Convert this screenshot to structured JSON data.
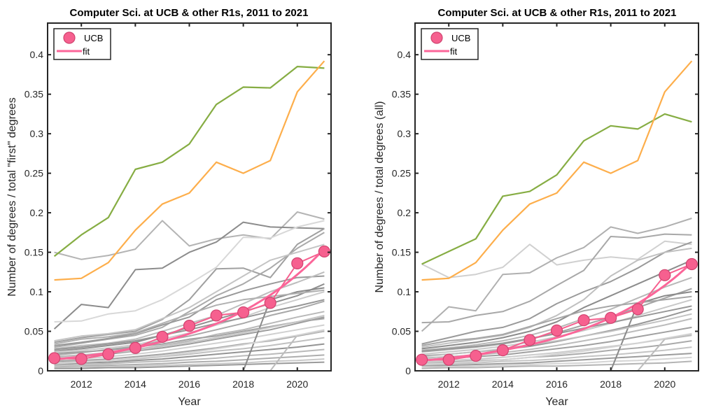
{
  "chart_data": [
    {
      "type": "line",
      "title": "Computer Sci. at UCB & other R1s, 2011 to 2021",
      "xlabel": "Year",
      "ylabel": "Number of degrees / total \"first\" degrees",
      "xlim": [
        2010.75,
        2021.25
      ],
      "ylim": [
        0,
        0.44
      ],
      "xticks": [
        2012,
        2014,
        2016,
        2018,
        2020
      ],
      "xtick_labels": [
        "2012",
        "2014",
        "2016",
        "2018",
        "2020"
      ],
      "yticks": [
        0,
        0.05,
        0.1,
        0.15,
        0.2,
        0.25,
        0.3,
        0.35,
        0.4
      ],
      "ytick_labels": [
        "0",
        "0.05",
        "0.1",
        "0.15",
        "0.2",
        "0.25",
        "0.3",
        "0.35",
        "0.4"
      ],
      "grid": false,
      "legend": {
        "placement": "top-left",
        "entries": [
          "UCB",
          "fit"
        ]
      },
      "x": [
        2011,
        2012,
        2013,
        2014,
        2015,
        2016,
        2017,
        2018,
        2019,
        2020,
        2021
      ],
      "highlight_series": [
        {
          "name": "green-institution",
          "color": "#86ad43",
          "values": [
            0.145,
            0.172,
            0.194,
            0.255,
            0.264,
            0.287,
            0.337,
            0.359,
            0.358,
            0.385,
            0.383
          ]
        },
        {
          "name": "orange-institution",
          "color": "#fdae4b",
          "values": [
            0.115,
            0.117,
            0.137,
            0.178,
            0.211,
            0.225,
            0.264,
            0.25,
            0.266,
            0.353,
            0.392
          ]
        }
      ],
      "ucb": {
        "name": "UCB",
        "color": "#f6608f",
        "values": [
          0.016,
          0.015,
          0.021,
          0.029,
          0.043,
          0.057,
          0.07,
          0.074,
          0.086,
          0.136,
          0.151
        ]
      },
      "fit": {
        "name": "fit",
        "color": "#fb6699",
        "model": "exponential",
        "a": 0.0143,
        "b": 0.238
      },
      "gray_series": [
        {
          "color": "#b4b4b4",
          "values": [
            0.15,
            0.141,
            0.146,
            0.154,
            0.19,
            0.158,
            0.167,
            0.172,
            0.167,
            0.201,
            0.192
          ]
        },
        {
          "color": "#8c8c8c",
          "values": [
            0.053,
            0.084,
            0.08,
            0.128,
            0.13,
            0.15,
            0.163,
            0.188,
            0.182,
            0.181,
            0.18
          ]
        },
        {
          "color": "#d8d8d8",
          "values": [
            0.062,
            0.063,
            0.072,
            0.076,
            0.09,
            0.11,
            0.131,
            0.169,
            0.168,
            0.182,
            0.19
          ]
        },
        {
          "color": "#a0a0a0",
          "values": [
            0.036,
            0.042,
            0.046,
            0.05,
            0.065,
            0.09,
            0.129,
            0.13,
            0.118,
            0.16,
            0.18
          ]
        },
        {
          "color": "#aaaaaa",
          "values": [
            0.03,
            0.035,
            0.04,
            0.045,
            0.055,
            0.075,
            0.095,
            0.11,
            0.13,
            0.155,
            0.175
          ]
        },
        {
          "color": "#c4c4c4",
          "values": [
            0.038,
            0.044,
            0.047,
            0.052,
            0.066,
            0.08,
            0.1,
            0.12,
            0.14,
            0.15,
            0.16
          ]
        },
        {
          "color": "#999999",
          "values": [
            0.032,
            0.036,
            0.041,
            0.047,
            0.058,
            0.068,
            0.09,
            0.101,
            0.11,
            0.118,
            0.12
          ]
        },
        {
          "color": "#bdbdbd",
          "values": [
            0.028,
            0.032,
            0.035,
            0.04,
            0.05,
            0.06,
            0.07,
            0.085,
            0.1,
            0.112,
            0.125
          ]
        },
        {
          "color": "#8f8f8f",
          "values": [
            0.025,
            0.028,
            0.032,
            0.036,
            0.045,
            0.055,
            0.065,
            0.075,
            0.085,
            0.095,
            0.11
          ]
        },
        {
          "color": "#cccccc",
          "values": [
            0.024,
            0.026,
            0.029,
            0.033,
            0.04,
            0.048,
            0.058,
            0.068,
            0.08,
            0.09,
            0.1
          ]
        },
        {
          "color": "#a8a8a8",
          "values": [
            0.02,
            0.023,
            0.027,
            0.031,
            0.038,
            0.044,
            0.052,
            0.06,
            0.07,
            0.078,
            0.088
          ]
        },
        {
          "color": "#b8b8b8",
          "values": [
            0.018,
            0.02,
            0.023,
            0.027,
            0.032,
            0.038,
            0.046,
            0.052,
            0.06,
            0.068,
            0.075
          ]
        },
        {
          "color": "#9c9c9c",
          "values": [
            0.015,
            0.018,
            0.021,
            0.025,
            0.029,
            0.034,
            0.04,
            0.046,
            0.052,
            0.06,
            0.068
          ]
        },
        {
          "color": "#d0d0d0",
          "values": [
            0.013,
            0.015,
            0.018,
            0.021,
            0.025,
            0.03,
            0.035,
            0.04,
            0.046,
            0.052,
            0.058
          ]
        },
        {
          "color": "#a4a4a4",
          "values": [
            0.012,
            0.013,
            0.015,
            0.018,
            0.021,
            0.025,
            0.029,
            0.034,
            0.038,
            0.044,
            0.05
          ]
        },
        {
          "color": "#c0c0c0",
          "values": [
            0.01,
            0.012,
            0.013,
            0.015,
            0.018,
            0.021,
            0.025,
            0.028,
            0.032,
            0.037,
            0.042
          ]
        },
        {
          "color": "#949494",
          "values": [
            0.008,
            0.01,
            0.011,
            0.013,
            0.015,
            0.018,
            0.021,
            0.024,
            0.027,
            0.03,
            0.034
          ]
        },
        {
          "color": "#bababa",
          "values": [
            0.007,
            0.008,
            0.009,
            0.011,
            0.012,
            0.014,
            0.016,
            0.019,
            0.021,
            0.024,
            0.027
          ]
        },
        {
          "color": "#aeaeae",
          "values": [
            0.005,
            0.006,
            0.007,
            0.008,
            0.009,
            0.011,
            0.012,
            0.014,
            0.016,
            0.018,
            0.02
          ]
        },
        {
          "color": "#c8c8c8",
          "values": [
            0.004,
            0.005,
            0.005,
            0.006,
            0.007,
            0.008,
            0.009,
            0.01,
            0.012,
            0.013,
            0.015
          ]
        },
        {
          "color": "#9a9a9a",
          "values": [
            0.003,
            0.003,
            0.004,
            0.004,
            0.005,
            0.006,
            0.007,
            0.008,
            0.009,
            0.01,
            0.011
          ]
        },
        {
          "color": "#8a8a8a",
          "values": [
            null,
            null,
            null,
            null,
            null,
            null,
            null,
            0.0,
            0.09,
            0.1,
            0.105
          ]
        },
        {
          "color": "#bcbcbc",
          "values": [
            null,
            null,
            null,
            null,
            null,
            null,
            null,
            null,
            0.0,
            0.045,
            0.05
          ]
        },
        {
          "color": "#b0b0b0",
          "values": [
            0.034,
            0.04,
            0.043,
            0.048,
            0.06,
            0.072,
            0.083,
            0.09,
            0.094,
            0.098,
            0.102
          ]
        },
        {
          "color": "#a2a2a2",
          "values": [
            0.022,
            0.024,
            0.026,
            0.03,
            0.034,
            0.04,
            0.044,
            0.05,
            0.056,
            0.062,
            0.066
          ]
        },
        {
          "color": "#c6c6c6",
          "values": [
            0.016,
            0.019,
            0.022,
            0.026,
            0.031,
            0.036,
            0.042,
            0.048,
            0.055,
            0.062,
            0.07
          ]
        },
        {
          "color": "#969696",
          "values": [
            0.027,
            0.03,
            0.034,
            0.038,
            0.045,
            0.052,
            0.06,
            0.067,
            0.075,
            0.082,
            0.09
          ]
        },
        {
          "color": "#d4d4d4",
          "values": [
            0.009,
            0.011,
            0.013,
            0.016,
            0.019,
            0.023,
            0.028,
            0.033,
            0.039,
            0.045,
            0.052
          ]
        }
      ]
    },
    {
      "type": "line",
      "title": "Computer Sci. at UCB & other R1s, 2011 to 2021",
      "xlabel": "Year",
      "ylabel": "Number of degrees / total degrees (all)",
      "xlim": [
        2010.75,
        2021.25
      ],
      "ylim": [
        0,
        0.44
      ],
      "xticks": [
        2012,
        2014,
        2016,
        2018,
        2020
      ],
      "xtick_labels": [
        "2012",
        "2014",
        "2016",
        "2018",
        "2020"
      ],
      "yticks": [
        0,
        0.05,
        0.1,
        0.15,
        0.2,
        0.25,
        0.3,
        0.35,
        0.4
      ],
      "ytick_labels": [
        "0",
        "0.05",
        "0.1",
        "0.15",
        "0.2",
        "0.25",
        "0.3",
        "0.35",
        "0.4"
      ],
      "grid": false,
      "legend": {
        "placement": "top-left",
        "entries": [
          "UCB",
          "fit"
        ]
      },
      "x": [
        2011,
        2012,
        2013,
        2014,
        2015,
        2016,
        2017,
        2018,
        2019,
        2020,
        2021
      ],
      "highlight_series": [
        {
          "name": "green-institution",
          "color": "#86ad43",
          "values": [
            0.135,
            0.151,
            0.167,
            0.221,
            0.227,
            0.248,
            0.291,
            0.31,
            0.306,
            0.325,
            0.315
          ]
        },
        {
          "name": "orange-institution",
          "color": "#fdae4b",
          "values": [
            0.115,
            0.117,
            0.137,
            0.178,
            0.211,
            0.225,
            0.264,
            0.25,
            0.266,
            0.353,
            0.392
          ]
        }
      ],
      "ucb": {
        "name": "UCB",
        "color": "#f6608f",
        "values": [
          0.014,
          0.014,
          0.019,
          0.026,
          0.039,
          0.051,
          0.064,
          0.067,
          0.078,
          0.121,
          0.135
        ]
      },
      "fit": {
        "name": "fit",
        "color": "#fb6699",
        "model": "exponential",
        "a": 0.0128,
        "b": 0.237
      },
      "gray_series": [
        {
          "color": "#d0d0d0",
          "values": [
            0.135,
            0.118,
            0.122,
            0.131,
            0.16,
            0.134,
            0.14,
            0.144,
            0.141,
            0.164,
            0.16
          ]
        },
        {
          "color": "#b0b0b0",
          "values": [
            0.05,
            0.081,
            0.076,
            0.122,
            0.124,
            0.143,
            0.156,
            0.182,
            0.174,
            0.182,
            0.193
          ]
        },
        {
          "color": "#a8a8a8",
          "values": [
            0.061,
            0.062,
            0.07,
            0.075,
            0.088,
            0.108,
            0.127,
            0.17,
            0.168,
            0.173,
            0.172
          ]
        },
        {
          "color": "#9a9a9a",
          "values": [
            0.034,
            0.042,
            0.05,
            0.055,
            0.066,
            0.085,
            0.1,
            0.113,
            0.13,
            0.15,
            0.163
          ]
        },
        {
          "color": "#c0c0c0",
          "values": [
            0.03,
            0.035,
            0.04,
            0.045,
            0.055,
            0.07,
            0.09,
            0.12,
            0.14,
            0.15,
            0.155
          ]
        },
        {
          "color": "#8c8c8c",
          "values": [
            0.028,
            0.032,
            0.036,
            0.042,
            0.05,
            0.062,
            0.08,
            0.095,
            0.11,
            0.125,
            0.14
          ]
        },
        {
          "color": "#b8b8b8",
          "values": [
            0.026,
            0.029,
            0.033,
            0.038,
            0.045,
            0.054,
            0.066,
            0.078,
            0.092,
            0.106,
            0.118
          ]
        },
        {
          "color": "#a4a4a4",
          "values": [
            0.024,
            0.027,
            0.03,
            0.034,
            0.04,
            0.048,
            0.058,
            0.068,
            0.08,
            0.092,
            0.104
          ]
        },
        {
          "color": "#c8c8c8",
          "values": [
            0.021,
            0.024,
            0.027,
            0.031,
            0.036,
            0.043,
            0.051,
            0.06,
            0.07,
            0.08,
            0.09
          ]
        },
        {
          "color": "#969696",
          "values": [
            0.019,
            0.021,
            0.024,
            0.027,
            0.031,
            0.037,
            0.044,
            0.051,
            0.059,
            0.068,
            0.078
          ]
        },
        {
          "color": "#bcbcbc",
          "values": [
            0.016,
            0.018,
            0.02,
            0.023,
            0.027,
            0.032,
            0.038,
            0.044,
            0.051,
            0.058,
            0.066
          ]
        },
        {
          "color": "#a0a0a0",
          "values": [
            0.014,
            0.016,
            0.018,
            0.02,
            0.024,
            0.028,
            0.032,
            0.037,
            0.043,
            0.049,
            0.055
          ]
        },
        {
          "color": "#cccccc",
          "values": [
            0.012,
            0.013,
            0.015,
            0.017,
            0.02,
            0.023,
            0.027,
            0.031,
            0.035,
            0.04,
            0.046
          ]
        },
        {
          "color": "#aaaaaa",
          "values": [
            0.01,
            0.011,
            0.013,
            0.014,
            0.017,
            0.019,
            0.022,
            0.026,
            0.029,
            0.033,
            0.038
          ]
        },
        {
          "color": "#c4c4c4",
          "values": [
            0.008,
            0.009,
            0.01,
            0.012,
            0.013,
            0.015,
            0.018,
            0.02,
            0.023,
            0.026,
            0.03
          ]
        },
        {
          "color": "#9c9c9c",
          "values": [
            0.006,
            0.007,
            0.008,
            0.009,
            0.01,
            0.012,
            0.014,
            0.016,
            0.018,
            0.02,
            0.022
          ]
        },
        {
          "color": "#d4d4d4",
          "values": [
            0.005,
            0.005,
            0.006,
            0.007,
            0.008,
            0.009,
            0.01,
            0.012,
            0.013,
            0.015,
            0.017
          ]
        },
        {
          "color": "#b4b4b4",
          "values": [
            0.003,
            0.004,
            0.004,
            0.005,
            0.006,
            0.006,
            0.007,
            0.008,
            0.009,
            0.01,
            0.012
          ]
        },
        {
          "color": "#8a8a8a",
          "values": [
            null,
            null,
            null,
            null,
            null,
            null,
            null,
            0.0,
            0.085,
            0.095,
            0.1
          ]
        },
        {
          "color": "#bcbcbc",
          "values": [
            null,
            null,
            null,
            null,
            null,
            null,
            null,
            null,
            0.0,
            0.04,
            0.045
          ]
        },
        {
          "color": "#a6a6a6",
          "values": [
            0.032,
            0.038,
            0.041,
            0.046,
            0.056,
            0.066,
            0.076,
            0.082,
            0.086,
            0.09,
            0.094
          ]
        },
        {
          "color": "#c2c2c2",
          "values": [
            0.018,
            0.021,
            0.024,
            0.028,
            0.033,
            0.038,
            0.044,
            0.05,
            0.057,
            0.064,
            0.072
          ]
        },
        {
          "color": "#989898",
          "values": [
            0.025,
            0.028,
            0.031,
            0.035,
            0.041,
            0.047,
            0.054,
            0.061,
            0.068,
            0.075,
            0.082
          ]
        },
        {
          "color": "#d2d2d2",
          "values": [
            0.009,
            0.01,
            0.012,
            0.014,
            0.017,
            0.021,
            0.025,
            0.03,
            0.035,
            0.041,
            0.047
          ]
        }
      ]
    }
  ]
}
